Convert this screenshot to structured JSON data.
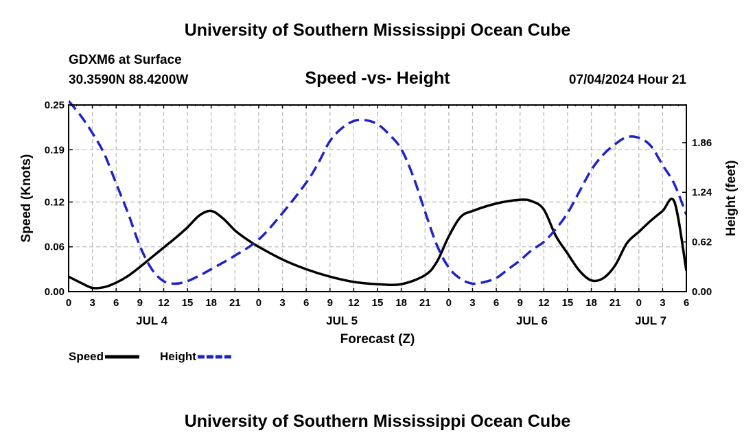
{
  "header": {
    "title": "University of Southern Mississippi Ocean Cube",
    "station": "GDXM6 at Surface",
    "coords": "30.3590N  88.4200W",
    "timestamp": "07/04/2024 Hour 21"
  },
  "footer": {
    "title": "University of Southern Mississippi Ocean Cube"
  },
  "chart_data": {
    "type": "line",
    "title": "Speed -vs- Height",
    "xlabel": "Forecast (Z)",
    "ylabel_left": "Speed (Knots)",
    "ylabel_right": "Height (feet)",
    "x_range_hours": [
      0,
      78
    ],
    "x_tick_step_hours": 3,
    "x_tick_labels": [
      "0",
      "3",
      "6",
      "9",
      "12",
      "15",
      "18",
      "21",
      "0",
      "3",
      "6",
      "9",
      "12",
      "15",
      "18",
      "21",
      "0",
      "3",
      "6",
      "9",
      "12",
      "15",
      "18",
      "21",
      "0",
      "3",
      "6"
    ],
    "date_labels": [
      {
        "label": "JUL 4",
        "hour": 10.5
      },
      {
        "label": "JUL 5",
        "hour": 34.5
      },
      {
        "label": "JUL 6",
        "hour": 58.5
      },
      {
        "label": "JUL 7",
        "hour": 73.5
      }
    ],
    "left_axis": {
      "range": [
        0,
        0.25
      ],
      "ticks": [
        0.0,
        0.06,
        0.12,
        0.19,
        0.25
      ],
      "tick_labels": [
        "0.00",
        "0.06",
        "0.12",
        "0.19",
        "0.25"
      ]
    },
    "right_axis": {
      "range": [
        0,
        2.33
      ],
      "ticks": [
        0.0,
        0.62,
        1.24,
        1.86
      ],
      "tick_labels": [
        "0.00",
        "0.62",
        "1.24",
        "1.86"
      ]
    },
    "grid": true,
    "legend": [
      {
        "name": "Speed",
        "color": "#000000",
        "style": "solid"
      },
      {
        "name": "Height",
        "color": "#1e22c8",
        "style": "dashed"
      }
    ],
    "series": [
      {
        "name": "Speed",
        "axis": "left",
        "color": "#000000",
        "x": [
          0,
          1.5,
          3,
          4.5,
          6,
          7.5,
          9,
          10.5,
          12,
          13.5,
          15,
          16.5,
          18,
          19.5,
          21,
          22.5,
          24,
          27,
          30,
          33,
          36,
          39,
          42,
          45,
          46.5,
          48,
          49.5,
          51,
          54,
          57,
          58.5,
          60,
          61.5,
          63,
          64.5,
          66,
          67.5,
          69,
          70.5,
          72,
          73.5,
          75,
          76.5,
          78
        ],
        "values": [
          0.02,
          0.012,
          0.005,
          0.006,
          0.012,
          0.021,
          0.033,
          0.046,
          0.059,
          0.072,
          0.086,
          0.102,
          0.108,
          0.098,
          0.082,
          0.07,
          0.06,
          0.043,
          0.03,
          0.02,
          0.013,
          0.01,
          0.01,
          0.022,
          0.04,
          0.074,
          0.1,
          0.108,
          0.118,
          0.123,
          0.121,
          0.11,
          0.075,
          0.051,
          0.028,
          0.015,
          0.018,
          0.035,
          0.065,
          0.08,
          0.095,
          0.108,
          0.12,
          0.028
        ]
      },
      {
        "name": "Height",
        "axis": "right",
        "color": "#1e22c8",
        "x": [
          0,
          1.5,
          3,
          4.5,
          6,
          7.5,
          9,
          10.5,
          12,
          13.5,
          15,
          16.5,
          18,
          21,
          24,
          27,
          30,
          31.5,
          33,
          34.5,
          36,
          37.5,
          39,
          40.5,
          42,
          43.5,
          45,
          46.5,
          48,
          49.5,
          51,
          52.5,
          54,
          55.5,
          57,
          58.5,
          60,
          61.5,
          63,
          64.5,
          66,
          67.5,
          69,
          70.5,
          72,
          73.5,
          75,
          76.5,
          78
        ],
        "values": [
          2.38,
          2.2,
          1.98,
          1.72,
          1.35,
          0.98,
          0.57,
          0.28,
          0.13,
          0.1,
          0.13,
          0.2,
          0.28,
          0.45,
          0.65,
          0.98,
          1.36,
          1.6,
          1.88,
          2.04,
          2.13,
          2.14,
          2.09,
          1.96,
          1.78,
          1.44,
          1.0,
          0.58,
          0.3,
          0.16,
          0.1,
          0.12,
          0.17,
          0.28,
          0.39,
          0.52,
          0.62,
          0.78,
          0.98,
          1.25,
          1.52,
          1.71,
          1.84,
          1.93,
          1.92,
          1.82,
          1.58,
          1.34,
          0.96
        ]
      }
    ]
  }
}
